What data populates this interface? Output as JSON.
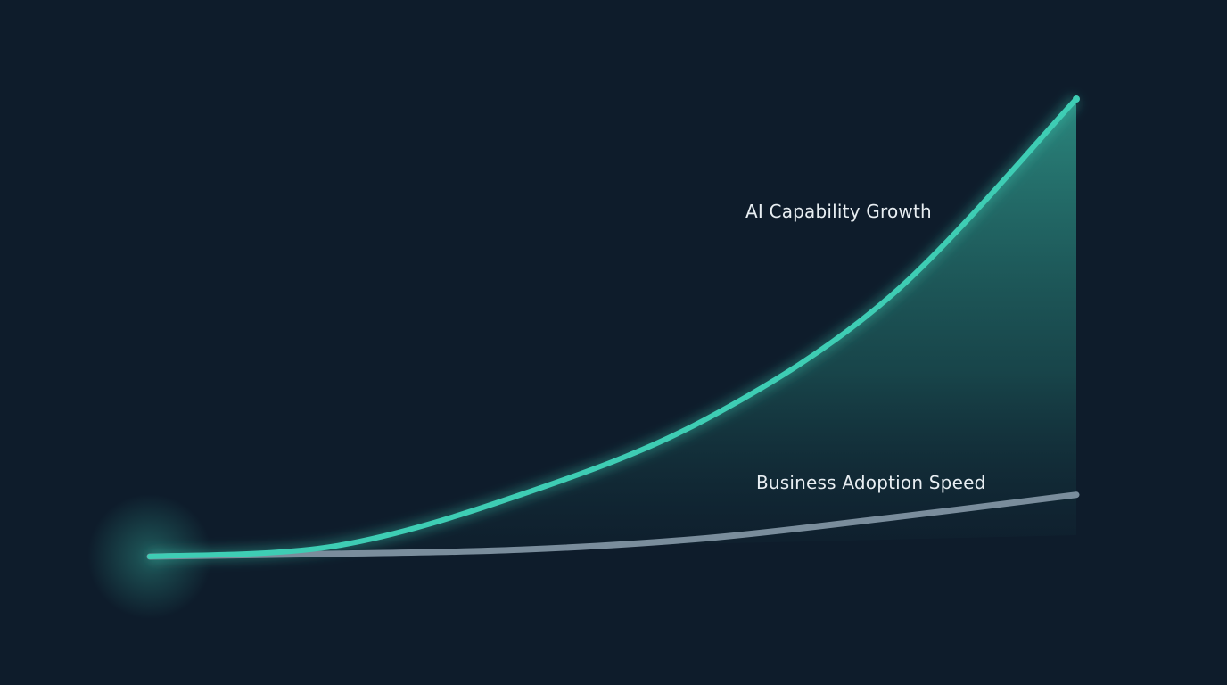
{
  "chart_data": {
    "type": "area",
    "title": "",
    "xlabel": "",
    "ylabel": "",
    "xlim": [
      0,
      10
    ],
    "ylim": [
      0,
      100
    ],
    "grid": false,
    "axes_visible": false,
    "x": [
      0,
      2,
      4,
      6,
      8,
      10
    ],
    "series": [
      {
        "name": "AI Capability Growth",
        "values": [
          0,
          2.3,
          13.5,
          30,
          57,
          100
        ],
        "color": "#3ecdb4",
        "filled": true
      },
      {
        "name": "Business Adoption Speed",
        "values": [
          0,
          0.6,
          1.5,
          4,
          8.5,
          13.5
        ],
        "color": "#7a8d9c"
      }
    ]
  },
  "colors": {
    "background": "#0e1c2b",
    "accent": "#3ecdb4",
    "secondary": "#7a8d9c"
  }
}
